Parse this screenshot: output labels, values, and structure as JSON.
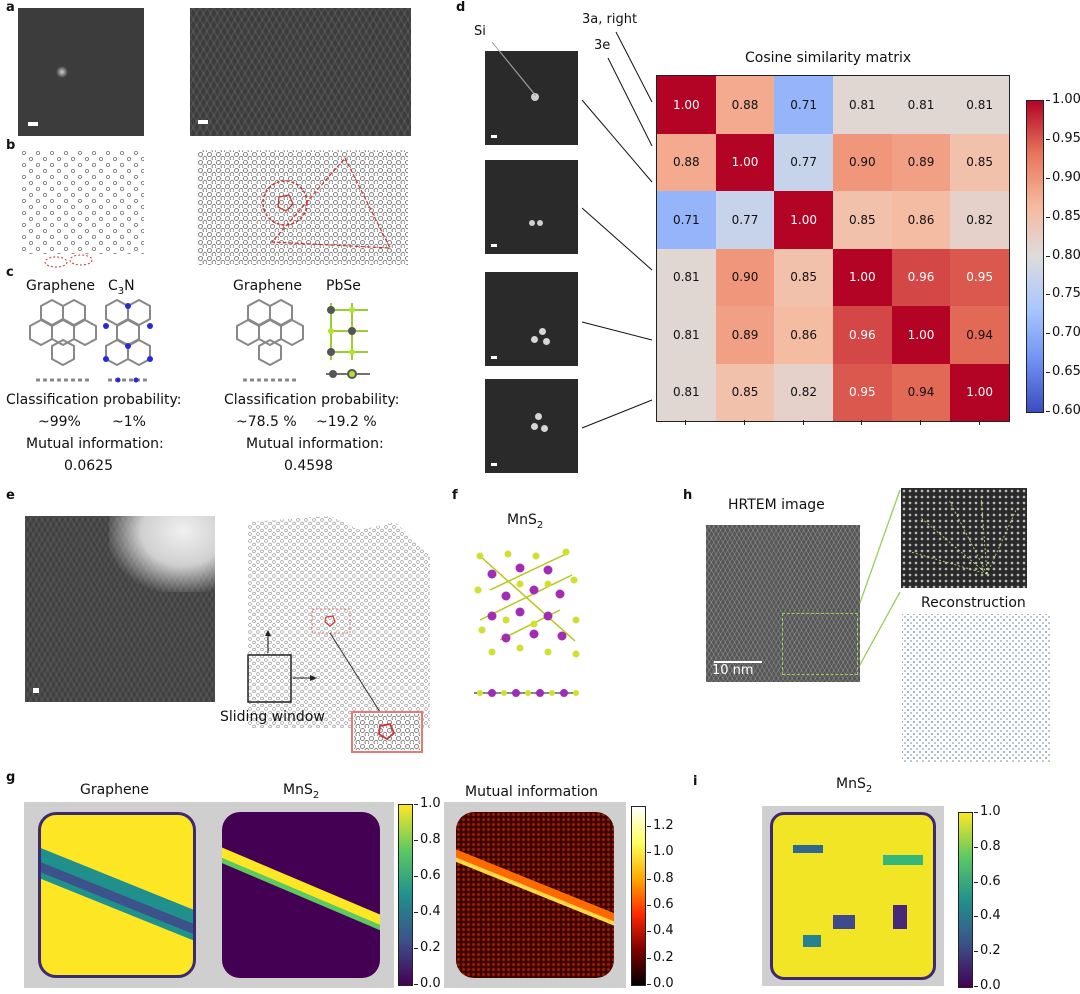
{
  "figure": {
    "panel_labels": [
      "a",
      "b",
      "c",
      "d",
      "e",
      "f",
      "g",
      "h",
      "i"
    ],
    "panel_c": {
      "left": {
        "mat1": "Graphene",
        "mat2_main": "C",
        "mat2_sub": "3",
        "mat2_tail": "N",
        "class_prob_label": "Classification probability:",
        "prob1": "~99%",
        "prob2": "~1%",
        "mi_label": "Mutual information:",
        "mi_value": "0.0625"
      },
      "right": {
        "mat1": "Graphene",
        "mat2": "PbSe",
        "class_prob_label": "Classification probability:",
        "prob1": "~78.5 %",
        "prob2": "~19.2 %",
        "mi_label": "Mutual information:",
        "mi_value": "0.4598"
      }
    },
    "panel_d": {
      "si_label": "Si",
      "ref_3a": "3a, right",
      "ref_3e": "3e",
      "title": "Cosine similarity matrix"
    },
    "panel_e": {
      "sliding_window_label": "Sliding window"
    },
    "panel_f": {
      "mat_main": "MnS",
      "mat_sub": "2"
    },
    "panel_g": {
      "title1": "Graphene",
      "title2_main": "MnS",
      "title2_sub": "2",
      "title3": "Mutual information"
    },
    "panel_h": {
      "hrtem_label": "HRTEM image",
      "scale_bar": "10 nm",
      "reconstruction_label": "Reconstruction"
    },
    "panel_i": {
      "title_main": "MnS",
      "title_sub": "2"
    },
    "colors": {
      "coolwarm_low": "#3b4cc0",
      "coolwarm_high": "#b40426",
      "viridis_low": "#440154",
      "viridis_high": "#fde725",
      "hot_low": "#000000",
      "hot_high": "#ffffff",
      "highlight_red": "#cc3333"
    }
  },
  "chart_data": [
    {
      "id": "d",
      "type": "heatmap",
      "title": "Cosine similarity matrix",
      "rows": 6,
      "cols": 6,
      "values": [
        [
          1.0,
          0.88,
          0.71,
          0.81,
          0.81,
          0.81
        ],
        [
          0.88,
          1.0,
          0.77,
          0.9,
          0.89,
          0.85
        ],
        [
          0.71,
          0.77,
          1.0,
          0.85,
          0.86,
          0.82
        ],
        [
          0.81,
          0.9,
          0.85,
          1.0,
          0.96,
          0.95
        ],
        [
          0.81,
          0.89,
          0.86,
          0.96,
          1.0,
          0.94
        ],
        [
          0.81,
          0.85,
          0.82,
          0.95,
          0.94,
          1.0
        ]
      ],
      "labels": [
        [
          "1.00",
          "0.88",
          "0.71",
          "0.81",
          "0.81",
          "0.81"
        ],
        [
          "0.88",
          "1.00",
          "0.77",
          "0.90",
          "0.89",
          "0.85"
        ],
        [
          "0.71",
          "0.77",
          "1.00",
          "0.85",
          "0.86",
          "0.82"
        ],
        [
          "0.81",
          "0.90",
          "0.85",
          "1.00",
          "0.96",
          "0.95"
        ],
        [
          "0.81",
          "0.89",
          "0.86",
          "0.96",
          "1.00",
          "0.94"
        ],
        [
          "0.81",
          "0.85",
          "0.82",
          "0.95",
          "0.94",
          "1.00"
        ]
      ],
      "colormap": "coolwarm",
      "vmin": 0.6,
      "vmax": 1.0,
      "colorbar_ticks": [
        "1.00",
        "0.95",
        "0.90",
        "0.85",
        "0.80",
        "0.75",
        "0.70",
        "0.65",
        "0.60"
      ]
    },
    {
      "id": "g-graphene",
      "type": "heatmap",
      "title": "Graphene",
      "colormap": "viridis",
      "vmin": 0.0,
      "vmax": 1.0,
      "colorbar_ticks": [
        "1.0",
        "0.8",
        "0.6",
        "0.4",
        "0.2",
        "0.0"
      ]
    },
    {
      "id": "g-mns2",
      "type": "heatmap",
      "title": "MnS2",
      "colormap": "viridis",
      "vmin": 0.0,
      "vmax": 1.0
    },
    {
      "id": "g-mutual-information",
      "type": "heatmap",
      "title": "Mutual information",
      "colormap": "hot",
      "vmin": 0.0,
      "vmax": 1.35,
      "colorbar_ticks": [
        "1.2",
        "1.0",
        "0.8",
        "0.6",
        "0.4",
        "0.2",
        "0.0"
      ]
    },
    {
      "id": "i",
      "type": "heatmap",
      "title": "MnS2",
      "colormap": "viridis",
      "vmin": 0.0,
      "vmax": 1.0,
      "colorbar_ticks": [
        "1.0",
        "0.8",
        "0.6",
        "0.4",
        "0.2",
        "0.0"
      ]
    }
  ]
}
